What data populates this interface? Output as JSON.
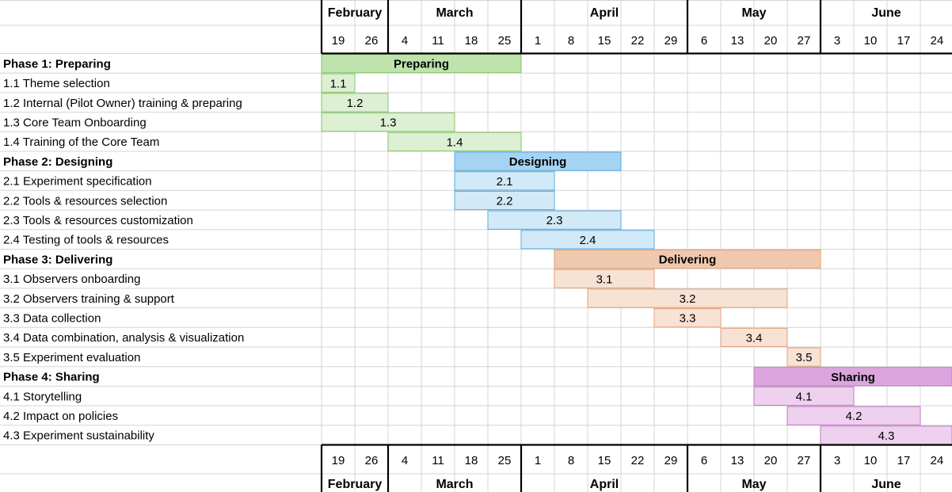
{
  "chart_data": {
    "type": "gantt",
    "months": [
      "February",
      "March",
      "April",
      "May",
      "June"
    ],
    "week_days": [
      19,
      26,
      4,
      11,
      18,
      25,
      1,
      8,
      15,
      22,
      29,
      6,
      13,
      20,
      27,
      3,
      10,
      17,
      24
    ],
    "week_months": [
      "February",
      "February",
      "March",
      "March",
      "March",
      "March",
      "April",
      "April",
      "April",
      "April",
      "April",
      "May",
      "May",
      "May",
      "May",
      "June",
      "June",
      "June",
      "June"
    ],
    "phases": [
      {
        "label": "Phase 1: Preparing",
        "bar_label": "Preparing",
        "start_week": 0,
        "end_week": 6,
        "color_main": "#bfe3ac",
        "color_light": "#ddf0d3",
        "color_border": "#86c56a",
        "tasks": [
          {
            "label": "1.1 Theme selection",
            "code": "1.1",
            "start_week": 0,
            "end_week": 1
          },
          {
            "label": "1.2 Internal (Pilot Owner) training & preparing",
            "code": "1.2",
            "start_week": 0,
            "end_week": 2
          },
          {
            "label": "1.3 Core Team Onboarding",
            "code": "1.3",
            "start_week": 0,
            "end_week": 4
          },
          {
            "label": "1.4 Training of the Core Team",
            "code": "1.4",
            "start_week": 2,
            "end_week": 6
          }
        ]
      },
      {
        "label": "Phase 2: Designing",
        "bar_label": "Designing",
        "start_week": 4,
        "end_week": 9,
        "color_main": "#a5d4f2",
        "color_light": "#d2eaf8",
        "color_border": "#5aa8dd",
        "tasks": [
          {
            "label": "2.1 Experiment specification",
            "code": "2.1",
            "start_week": 4,
            "end_week": 7
          },
          {
            "label": "2.2 Tools & resources selection",
            "code": "2.2",
            "start_week": 4,
            "end_week": 7
          },
          {
            "label": "2.3 Tools & resources customization",
            "code": "2.3",
            "start_week": 5,
            "end_week": 9
          },
          {
            "label": "2.4 Testing of tools & resources",
            "code": "2.4",
            "start_week": 6,
            "end_week": 10
          }
        ]
      },
      {
        "label": "Phase 3: Delivering",
        "bar_label": "Delivering",
        "start_week": 7,
        "end_week": 15,
        "color_main": "#efc9ad",
        "color_light": "#f8e2d4",
        "color_border": "#e0a07a",
        "tasks": [
          {
            "label": "3.1 Observers onboarding",
            "code": "3.1",
            "start_week": 7,
            "end_week": 10
          },
          {
            "label": "3.2 Observers training & support",
            "code": "3.2",
            "start_week": 8,
            "end_week": 14
          },
          {
            "label": "3.3 Data collection",
            "code": "3.3",
            "start_week": 10,
            "end_week": 12
          },
          {
            "label": "3.4 Data combination, analysis & visualization",
            "code": "3.4",
            "start_week": 12,
            "end_week": 14
          },
          {
            "label": "3.5 Experiment evaluation",
            "code": "3.5",
            "start_week": 14,
            "end_week": 15
          }
        ]
      },
      {
        "label": "Phase 4: Sharing",
        "bar_label": "Sharing",
        "start_week": 13,
        "end_week": 19,
        "color_main": "#dba6dd",
        "color_light": "#eed1ee",
        "color_border": "#c07ac4",
        "tasks": [
          {
            "label": "4.1 Storytelling",
            "code": "4.1",
            "start_week": 13,
            "end_week": 16
          },
          {
            "label": "4.2 Impact on policies",
            "code": "4.2",
            "start_week": 14,
            "end_week": 18
          },
          {
            "label": "4.3 Experiment sustainability",
            "code": "4.3",
            "start_week": 15,
            "end_week": 19
          }
        ]
      }
    ]
  }
}
